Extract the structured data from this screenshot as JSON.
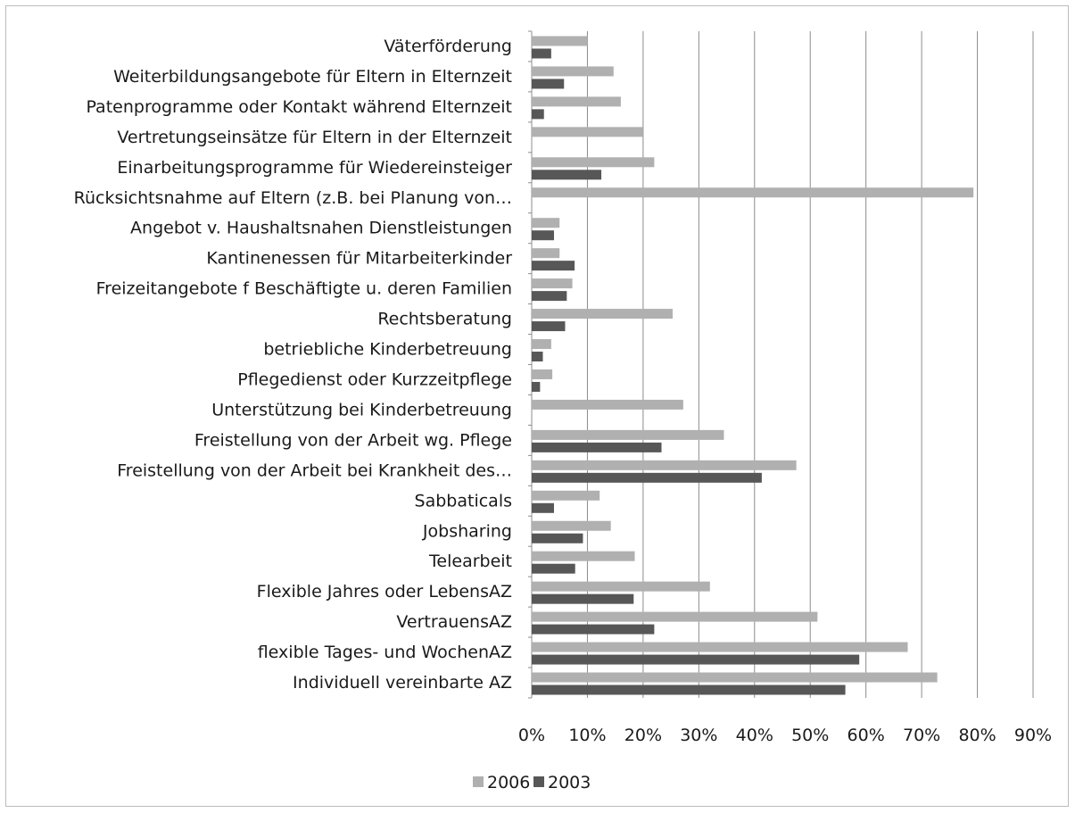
{
  "chart_data": {
    "type": "bar",
    "orientation": "horizontal",
    "categories": [
      "Väterförderung",
      "Weiterbildungsangebote für Eltern in Elternzeit",
      "Patenprogramme oder Kontakt während Elternzeit",
      "Vertretungseinsätze für Eltern in der Elternzeit",
      "Einarbeitungsprogramme für Wiedereinsteiger",
      "Rücksichtsnahme auf Eltern (z.B. bei Planung von…",
      "Angebot v. Haushaltsnahen Dienstleistungen",
      "Kantinenessen für Mitarbeiterkinder",
      "Freizeitangebote f Beschäftigte u. deren Familien",
      "Rechtsberatung",
      "betriebliche Kinderbetreuung",
      "Pflegedienst oder Kurzzeitpflege",
      "Unterstützung bei Kinderbetreuung",
      "Freistellung von der Arbeit wg. Pflege",
      "Freistellung von der Arbeit bei Krankheit des…",
      "Sabbaticals",
      "Jobsharing",
      "Telearbeit",
      "Flexible Jahres oder LebensAZ",
      "VertrauensAZ",
      "flexible Tages- und WochenAZ",
      "Individuell vereinbarte AZ"
    ],
    "series": [
      {
        "name": "2006",
        "color": "#b0b0b0",
        "values": [
          10,
          14.7,
          16,
          20,
          22,
          79.3,
          5,
          5,
          7.3,
          25.3,
          3.5,
          3.7,
          27.2,
          34.5,
          47.5,
          12.2,
          14.2,
          18.5,
          32,
          51.3,
          67.5,
          72.8
        ]
      },
      {
        "name": "2003",
        "color": "#575757",
        "values": [
          3.5,
          5.8,
          2.2,
          null,
          12.5,
          null,
          4,
          7.7,
          6.3,
          6,
          2,
          1.5,
          null,
          23.3,
          41.3,
          4,
          9.2,
          7.8,
          18.3,
          22,
          58.8,
          56.3
        ]
      }
    ],
    "xlim": [
      0,
      90
    ],
    "xticks": [
      "0%",
      "10%",
      "20%",
      "30%",
      "40%",
      "50%",
      "60%",
      "70%",
      "80%",
      "90%"
    ],
    "grid": true,
    "legend_position": "bottom"
  }
}
